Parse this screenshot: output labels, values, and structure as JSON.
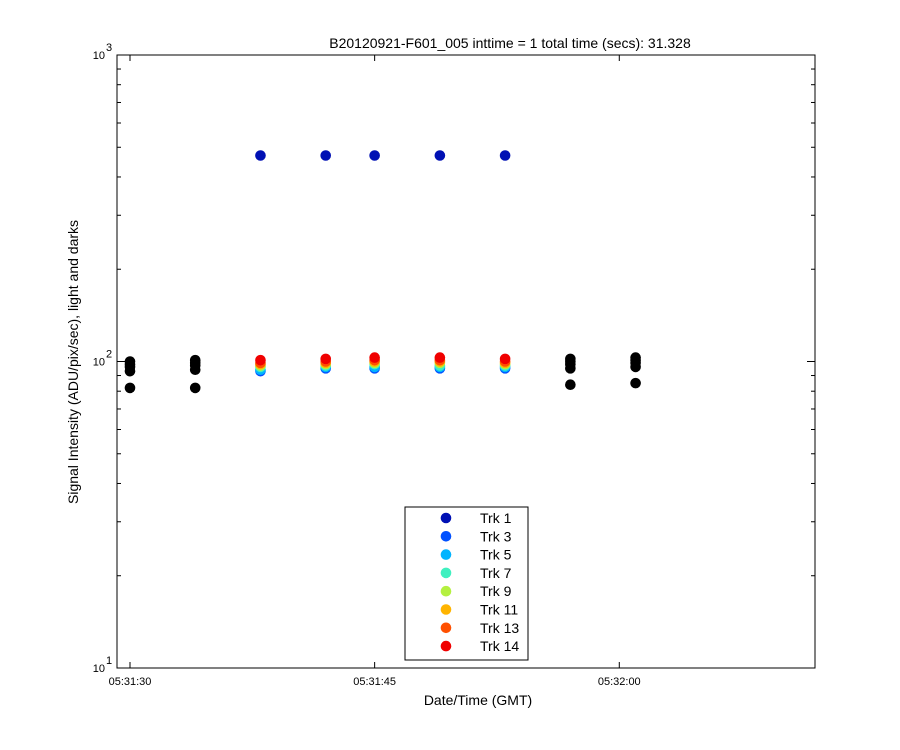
{
  "chart_data": {
    "type": "scatter",
    "title": "B20120921-F601_005 inttime = 1 total time (secs): 31.328",
    "xlabel": "Date/Time (GMT)",
    "ylabel": "Signal Intensity (ADU/pix/sec), light and darks",
    "y_scale": "log",
    "ylim": [
      10,
      1000
    ],
    "y_ticks": [
      {
        "base": "10",
        "exp": "1"
      },
      {
        "base": "10",
        "exp": "2"
      },
      {
        "base": "10",
        "exp": "3"
      }
    ],
    "xlim": [
      "05:31:30",
      "05:32:12"
    ],
    "x_ticks": [
      "05:31:30",
      "05:31:45",
      "05:32:00"
    ],
    "grid": false,
    "legend_position": "bottom-center",
    "series": [
      {
        "name": "Trk 1",
        "color": "#0010b4",
        "x": [
          "05:31:38",
          "05:31:42",
          "05:31:45",
          "05:31:49",
          "05:31:53"
        ],
        "y": [
          470,
          470,
          470,
          470,
          470
        ]
      },
      {
        "name": "Trk 3",
        "color": "#0050ff",
        "x": [
          "05:31:38",
          "05:31:42",
          "05:31:45",
          "05:31:49",
          "05:31:53"
        ],
        "y": [
          93,
          95,
          95,
          95,
          95
        ]
      },
      {
        "name": "Trk 5",
        "color": "#00b4ff",
        "x": [
          "05:31:38",
          "05:31:42",
          "05:31:45",
          "05:31:49",
          "05:31:53"
        ],
        "y": [
          94,
          96,
          96,
          96,
          96
        ]
      },
      {
        "name": "Trk 7",
        "color": "#40f0c0",
        "x": [
          "05:31:38",
          "05:31:42",
          "05:31:45",
          "05:31:49",
          "05:31:53"
        ],
        "y": [
          96,
          97,
          98,
          97,
          97
        ]
      },
      {
        "name": "Trk 9",
        "color": "#b4f040",
        "x": [
          "05:31:38",
          "05:31:42",
          "05:31:45",
          "05:31:49",
          "05:31:53"
        ],
        "y": [
          97,
          98,
          99,
          99,
          98
        ]
      },
      {
        "name": "Trk 11",
        "color": "#ffb400",
        "x": [
          "05:31:38",
          "05:31:42",
          "05:31:45",
          "05:31:49",
          "05:31:53"
        ],
        "y": [
          98,
          99,
          100,
          100,
          99
        ]
      },
      {
        "name": "Trk 13",
        "color": "#ff5000",
        "x": [
          "05:31:38",
          "05:31:42",
          "05:31:45",
          "05:31:49",
          "05:31:53"
        ],
        "y": [
          99,
          100,
          101,
          101,
          100
        ]
      },
      {
        "name": "Trk 14",
        "color": "#f00000",
        "x": [
          "05:31:38",
          "05:31:42",
          "05:31:45",
          "05:31:49",
          "05:31:53"
        ],
        "y": [
          101,
          102,
          103,
          103,
          102
        ]
      },
      {
        "color": "#000000",
        "x": [
          "05:31:30",
          "05:31:30",
          "05:31:30",
          "05:31:30",
          "05:31:30",
          "05:31:34",
          "05:31:34",
          "05:31:34",
          "05:31:34",
          "05:31:34",
          "05:31:57",
          "05:31:57",
          "05:31:57",
          "05:31:57",
          "05:31:57",
          "05:32:01",
          "05:32:01",
          "05:32:01",
          "05:32:01",
          "05:32:01"
        ],
        "y": [
          82,
          93,
          96,
          98,
          100,
          82,
          94,
          97,
          99,
          101,
          84,
          95,
          98,
          100,
          102,
          85,
          96,
          99,
          101,
          103
        ]
      }
    ]
  }
}
